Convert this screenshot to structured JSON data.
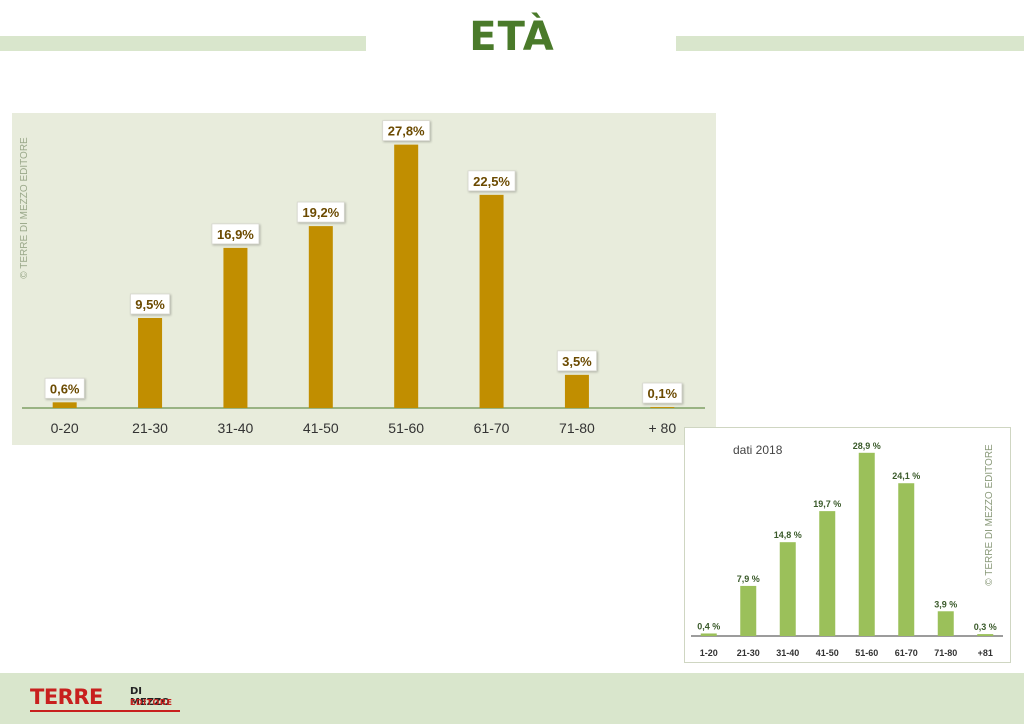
{
  "page": {
    "title": "ETÀ"
  },
  "chart_data": [
    {
      "type": "bar",
      "categories": [
        "0-20",
        "21-30",
        "31-40",
        "41-50",
        "51-60",
        "61-70",
        "71-80",
        "+ 80"
      ],
      "values": [
        0.6,
        9.5,
        16.9,
        19.2,
        27.8,
        22.5,
        3.5,
        0.1
      ],
      "data_labels": [
        "0,6%",
        "9,5%",
        "16,9%",
        "19,2%",
        "27,8%",
        "22,5%",
        "3,5%",
        "0,1%"
      ],
      "title": "",
      "xlabel": "",
      "ylabel": "",
      "ylim": [
        0,
        28.5
      ],
      "grid": false,
      "watermark": "© TERRE DI MEZZO EDITORE",
      "colors": {
        "bar": "#c18e00",
        "background": "#e8ecdc",
        "axis": "#4a7a2a",
        "label_text": "#6b4a00"
      }
    },
    {
      "type": "bar",
      "caption": "dati 2018",
      "categories": [
        "1-20",
        "21-30",
        "31-40",
        "41-50",
        "51-60",
        "61-70",
        "71-80",
        "+81"
      ],
      "values": [
        0.4,
        7.9,
        14.8,
        19.7,
        28.9,
        24.1,
        3.9,
        0.3
      ],
      "data_labels": [
        "0,4 %",
        "7,9 %",
        "14,8 %",
        "19,7 %",
        "28,9 %",
        "24,1 %",
        "3,9 %",
        "0,3 %"
      ],
      "title": "",
      "xlabel": "",
      "ylabel": "",
      "ylim": [
        0,
        29.5
      ],
      "grid": false,
      "watermark": "© TERRE DI MEZZO EDITORE",
      "colors": {
        "bar": "#9bc05a",
        "background": "#ffffff",
        "axis": "#3a3a3a",
        "label_text": "#3a5a2a"
      }
    }
  ],
  "footer": {
    "logo_main": "TERRE",
    "logo_sub1": "DI MEZZO",
    "logo_sub2": "EDITORE"
  }
}
